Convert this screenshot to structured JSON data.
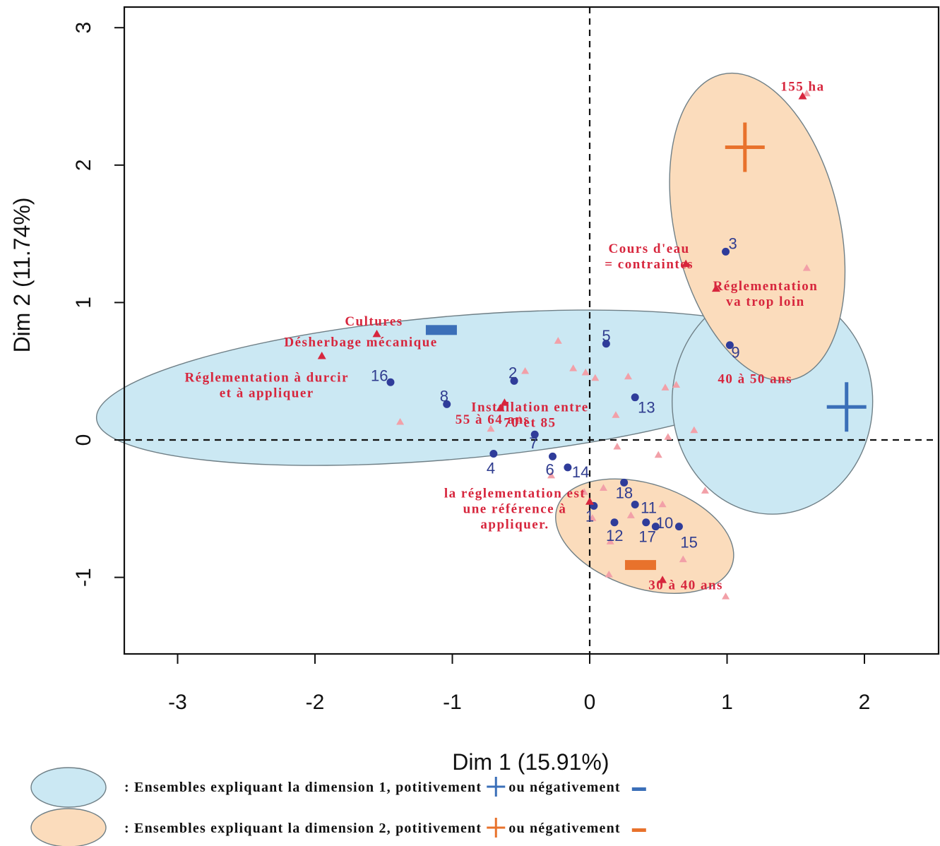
{
  "chart_data": {
    "type": "scatter",
    "xlabel": "Dim 1 (15.91%)",
    "ylabel": "Dim 2 (11.74%)",
    "xlim": [
      -3.4,
      2.55
    ],
    "ylim": [
      -1.55,
      3.15
    ],
    "xticks": [
      -3,
      -2,
      -1,
      0,
      1,
      2
    ],
    "yticks": [
      -1,
      0,
      1,
      2,
      3
    ],
    "xtick_labels": [
      "-3",
      "-2",
      "-1",
      "0",
      "1",
      "2"
    ],
    "ytick_labels": [
      "-1",
      "0",
      "1",
      "2",
      "3"
    ],
    "reference_lines": {
      "x": 0,
      "y": 0,
      "style": "dashed"
    },
    "grid": false,
    "colors": {
      "individuals": "#2f3c9a",
      "variables": "#d7263d",
      "supplementary": "#f2a0a8",
      "dim1_fill": "#cbe8f3",
      "dim2_fill": "#fbdcbc",
      "blue_marker": "#3b6fb8",
      "orange_marker": "#e8722c"
    },
    "individuals": [
      {
        "label": "1",
        "x": 0.03,
        "y": -0.48
      },
      {
        "label": "2",
        "x": -0.55,
        "y": 0.43
      },
      {
        "label": "3",
        "x": 0.99,
        "y": 1.37
      },
      {
        "label": "4",
        "x": -0.7,
        "y": -0.1
      },
      {
        "label": "5",
        "x": 0.12,
        "y": 0.7
      },
      {
        "label": "6",
        "x": -0.27,
        "y": -0.12
      },
      {
        "label": "7",
        "x": -0.4,
        "y": 0.04
      },
      {
        "label": "8",
        "x": -1.04,
        "y": 0.26
      },
      {
        "label": "9",
        "x": 1.02,
        "y": 0.69
      },
      {
        "label": "10",
        "x": 0.41,
        "y": -0.6
      },
      {
        "label": "11",
        "x": 0.33,
        "y": -0.47
      },
      {
        "label": "12",
        "x": 0.18,
        "y": -0.6
      },
      {
        "label": "13",
        "x": 0.33,
        "y": 0.31
      },
      {
        "label": "14",
        "x": -0.16,
        "y": -0.2
      },
      {
        "label": "15",
        "x": 0.65,
        "y": -0.63
      },
      {
        "label": "16",
        "x": -1.45,
        "y": 0.42
      },
      {
        "label": "17",
        "x": 0.48,
        "y": -0.63
      },
      {
        "label": "18",
        "x": 0.25,
        "y": -0.31
      }
    ],
    "variables": [
      {
        "label": [
          "155 ha"
        ],
        "x": 1.55,
        "y": 2.5
      },
      {
        "label": [
          "Cours d'eau",
          "= contraintes"
        ],
        "x": 0.7,
        "y": 1.28
      },
      {
        "label": [
          "Réglementation",
          "va trop loin"
        ],
        "x": 0.92,
        "y": 1.1
      },
      {
        "label": [
          "Cultures"
        ],
        "x": -1.55,
        "y": 0.77
      },
      {
        "label": [
          "Désherbage mécanique"
        ],
        "x": -1.65,
        "y": 0.68
      },
      {
        "label": [
          "Réglementation à durcir",
          "et à appliquer"
        ],
        "x": -1.95,
        "y": 0.61
      },
      {
        "label": [
          "Installation entre",
          "70 et 85"
        ],
        "x": -0.62,
        "y": 0.27
      },
      {
        "label": [
          "55 à 64 ans"
        ],
        "x": -0.65,
        "y": 0.23
      },
      {
        "label": [
          "40 à 50 ans"
        ],
        "x": 1.05,
        "y": 0.42
      },
      {
        "label": [
          "la réglementation est",
          "une référence à",
          "appliquer."
        ],
        "x": 0.0,
        "y": -0.45
      },
      {
        "label": [
          "30 à 40 ans"
        ],
        "x": 0.53,
        "y": -1.02
      }
    ],
    "supplementary_points": [
      [
        -1.38,
        0.13
      ],
      [
        -0.23,
        0.72
      ],
      [
        -0.12,
        0.52
      ],
      [
        -0.03,
        0.49
      ],
      [
        0.04,
        0.45
      ],
      [
        0.28,
        0.46
      ],
      [
        0.55,
        0.38
      ],
      [
        0.63,
        0.4
      ],
      [
        0.19,
        0.18
      ],
      [
        0.2,
        -0.05
      ],
      [
        0.5,
        -0.11
      ],
      [
        0.76,
        0.07
      ],
      [
        0.84,
        -0.37
      ],
      [
        0.53,
        -0.47
      ],
      [
        0.68,
        -0.87
      ],
      [
        0.99,
        -1.14
      ],
      [
        0.15,
        -0.74
      ],
      [
        0.14,
        -0.98
      ],
      [
        0.3,
        -0.55
      ],
      [
        0.02,
        -0.57
      ],
      [
        -0.04,
        -0.38
      ],
      [
        0.1,
        -0.35
      ],
      [
        -0.28,
        -0.26
      ],
      [
        -0.51,
        0.15
      ],
      [
        -0.72,
        0.08
      ],
      [
        -0.47,
        0.5
      ],
      [
        1.58,
        1.25
      ],
      [
        1.58,
        2.52
      ],
      [
        0.57,
        0.02
      ]
    ],
    "ellipses": [
      {
        "group": "dim1",
        "cx": -1.0,
        "cy": 0.38,
        "rx": 2.6,
        "ry": 0.52,
        "angle_deg": 5
      },
      {
        "group": "dim1",
        "cx": 1.33,
        "cy": 0.28,
        "rx": 0.73,
        "ry": 0.82,
        "angle_deg": 0
      },
      {
        "group": "dim2",
        "cx": 1.22,
        "cy": 1.55,
        "rx": 0.6,
        "ry": 1.14,
        "angle_deg": 13
      },
      {
        "group": "dim2",
        "cx": 0.4,
        "cy": -0.7,
        "rx": 0.67,
        "ry": 0.38,
        "angle_deg": -18
      }
    ],
    "group_markers": [
      {
        "group": "dim1",
        "sign": "+",
        "x": 1.87,
        "y": 0.24
      },
      {
        "group": "dim1",
        "sign": "-",
        "x": -1.08,
        "y": 0.8
      },
      {
        "group": "dim2",
        "sign": "+",
        "x": 1.13,
        "y": 2.13
      },
      {
        "group": "dim2",
        "sign": "-",
        "x": 0.37,
        "y": -0.91
      }
    ],
    "legend": [
      {
        "group": "dim1",
        "text_parts": [
          ": Ensembles expliquant la dimension 1, potitivement",
          "ou négativement"
        ]
      },
      {
        "group": "dim2",
        "text_parts": [
          ": Ensembles expliquant la dimension 2, potitivement",
          "ou négativement"
        ]
      }
    ]
  }
}
